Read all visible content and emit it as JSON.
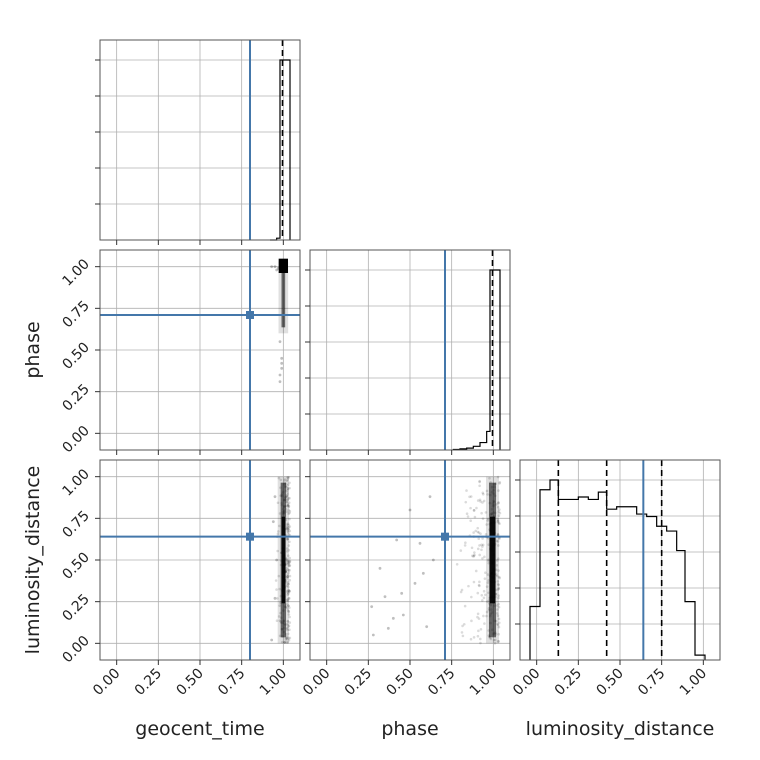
{
  "chart_data": {
    "type": "corner",
    "parameters": [
      "geocent_time",
      "phase",
      "luminosity_distance"
    ],
    "ticks": [
      0.0,
      0.25,
      0.5,
      0.75,
      1.0
    ],
    "tick_labels": [
      "0.00",
      "0.25",
      "0.50",
      "0.75",
      "1.00"
    ],
    "axis_range": [
      -0.1,
      1.1
    ],
    "grid": true,
    "colors": {
      "truth": "#4477aa",
      "hist": "#000000",
      "scatter": "#000000"
    },
    "truths": {
      "geocent_time": 0.8,
      "phase": 0.71,
      "luminosity_distance": 0.64
    },
    "marginals": {
      "geocent_time": {
        "bin_edges": [
          0.92,
          0.96,
          0.98,
          1.04
        ],
        "counts": [
          0.0,
          0.01,
          1.0
        ],
        "quantile_lines": [
          0.995
        ]
      },
      "phase": {
        "bin_edges": [
          0.76,
          0.8,
          0.84,
          0.88,
          0.92,
          0.96,
          0.98,
          1.04
        ],
        "counts": [
          0.003,
          0.006,
          0.01,
          0.02,
          0.04,
          0.1,
          0.97
        ],
        "quantile_lines": [
          0.995
        ]
      },
      "luminosity_distance": {
        "bin_edges": [
          -0.04,
          0.02,
          0.08,
          0.13,
          0.19,
          0.25,
          0.31,
          0.37,
          0.42,
          0.48,
          0.54,
          0.6,
          0.66,
          0.72,
          0.78,
          0.84,
          0.89,
          0.95,
          1.01
        ],
        "counts": [
          0.22,
          0.7,
          0.74,
          0.66,
          0.66,
          0.67,
          0.66,
          0.69,
          0.62,
          0.63,
          0.63,
          0.6,
          0.59,
          0.55,
          0.53,
          0.45,
          0.24,
          0.02
        ],
        "quantile_lines": [
          0.13,
          0.42,
          0.75
        ]
      }
    },
    "scatter": {
      "phase_vs_geocent_time": {
        "core": {
          "x": [
            0.995,
            1.005
          ],
          "y": [
            0.6,
            1.03
          ]
        },
        "cluster": {
          "x": [
            0.99,
            1.01
          ],
          "y": [
            0.98,
            1.03
          ]
        },
        "outliers": {
          "x": [
            0.93,
            0.95,
            0.97,
            0.96,
            0.99,
            0.98,
            0.99,
            0.98,
            0.99,
            0.98
          ],
          "y": [
            1.0,
            1.0,
            0.99,
            0.98,
            0.39,
            0.35,
            0.42,
            0.31,
            0.45,
            0.55
          ]
        }
      },
      "luminosity_distance_vs_geocent_time": {
        "core": {
          "x": [
            0.99,
            1.01
          ],
          "y": [
            0.0,
            1.0
          ]
        },
        "halo": {
          "x": [
            0.94,
            1.04
          ],
          "y": [
            0.0,
            1.0
          ]
        },
        "outliers": {
          "x": [
            0.95,
            0.94,
            0.96,
            0.95,
            0.93
          ],
          "y": [
            0.88,
            0.73,
            0.5,
            0.27,
            0.02
          ]
        }
      },
      "luminosity_distance_vs_phase": {
        "core": {
          "x": [
            0.98,
            1.01
          ],
          "y": [
            0.0,
            1.0
          ]
        },
        "halo": {
          "x": [
            0.75,
            1.04
          ],
          "y": [
            0.0,
            1.0
          ]
        },
        "outliers": {
          "x": [
            0.27,
            0.32,
            0.37,
            0.42,
            0.46,
            0.5,
            0.53,
            0.56,
            0.6,
            0.64,
            0.35,
            0.4,
            0.45,
            0.28,
            0.58,
            0.62
          ],
          "y": [
            0.22,
            0.45,
            0.09,
            0.62,
            0.17,
            0.8,
            0.36,
            0.6,
            0.1,
            0.5,
            0.28,
            0.15,
            0.3,
            0.05,
            0.42,
            0.88
          ]
        }
      }
    },
    "scatter_2d_points": {
      "phase_vs_geocent_time": [
        1.0,
        1.0
      ]
    }
  }
}
